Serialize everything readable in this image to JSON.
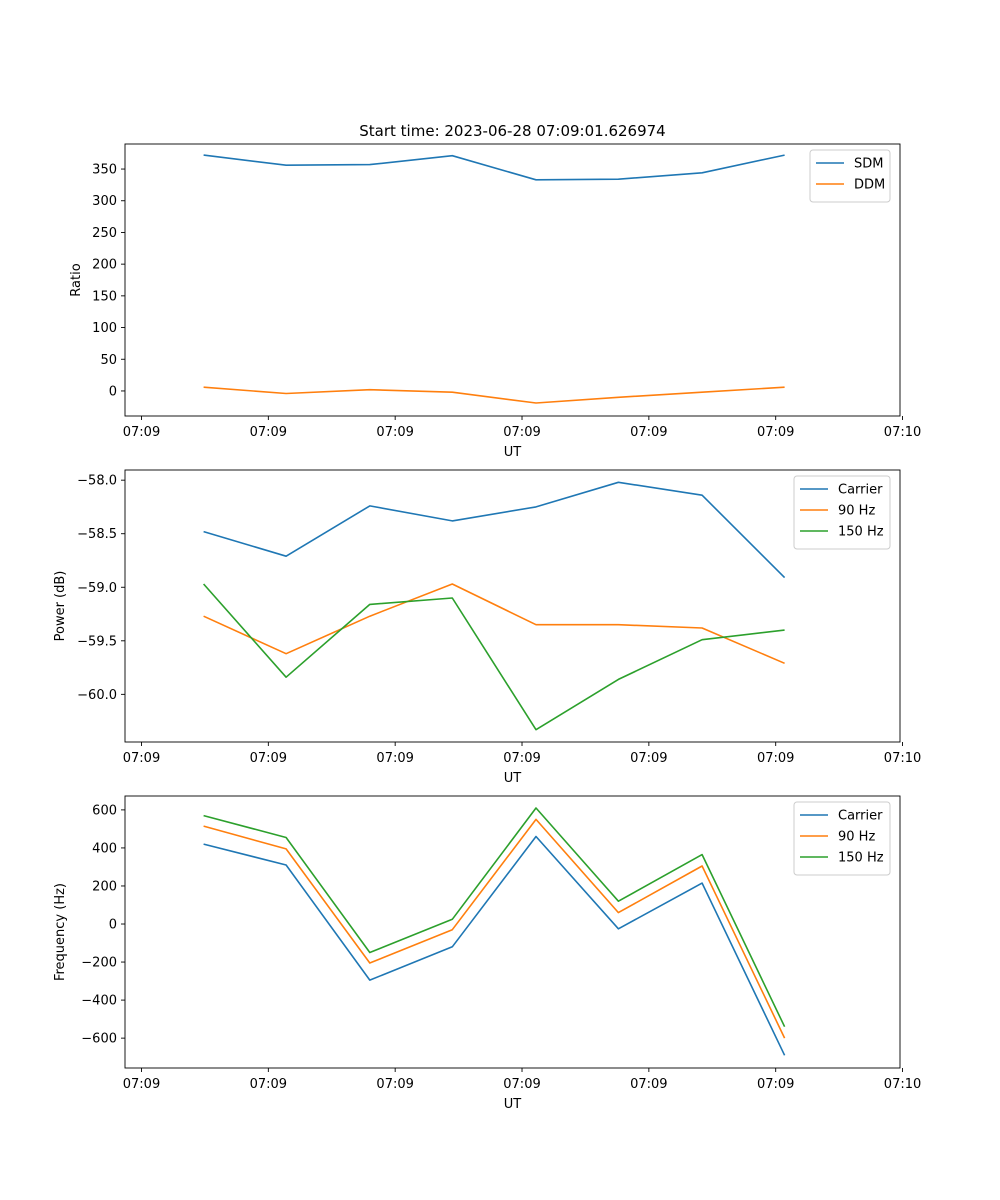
{
  "figure_title": "Start time: 2023-06-28 07:09:01.626974",
  "chart_data": [
    {
      "type": "line",
      "title": "Start time: 2023-06-28 07:09:01.626974",
      "xlabel": "UT",
      "ylabel": "Ratio",
      "x_ticks": [
        "07:09",
        "07:09",
        "07:09",
        "07:09",
        "07:09",
        "07:09",
        "07:10"
      ],
      "x_tick_values": [
        0,
        1,
        2,
        3,
        4,
        5,
        6
      ],
      "xlim": [
        -0.13,
        5.98
      ],
      "x": [
        0.49,
        1.14,
        1.8,
        2.45,
        3.11,
        3.76,
        4.42,
        5.07
      ],
      "ylim": [
        -39.5,
        389.5
      ],
      "y_ticks": [
        0,
        50,
        100,
        150,
        200,
        250,
        300,
        350
      ],
      "legend_position": "upper right",
      "series": [
        {
          "name": "SDM",
          "color": "#1f77b4",
          "values": [
            372,
            356,
            357,
            371,
            333,
            334,
            344,
            372
          ]
        },
        {
          "name": "DDM",
          "color": "#ff7f0e",
          "values": [
            6,
            -4,
            2,
            -2,
            -19,
            -10,
            -2,
            6
          ]
        }
      ]
    },
    {
      "type": "line",
      "xlabel": "UT",
      "ylabel": "Power (dB)",
      "x_ticks": [
        "07:09",
        "07:09",
        "07:09",
        "07:09",
        "07:09",
        "07:09",
        "07:10"
      ],
      "x_tick_values": [
        0,
        1,
        2,
        3,
        4,
        5,
        6
      ],
      "xlim": [
        -0.13,
        5.98
      ],
      "x": [
        0.49,
        1.14,
        1.8,
        2.45,
        3.11,
        3.76,
        4.42,
        5.07
      ],
      "ylim": [
        -60.445,
        -57.905
      ],
      "y_ticks": [
        -60.0,
        -59.5,
        -59.0,
        -58.5,
        -58.0
      ],
      "y_tick_labels": [
        "−60.0",
        "−59.5",
        "−59.0",
        "−58.5",
        "−58.0"
      ],
      "legend_position": "upper right",
      "series": [
        {
          "name": "Carrier",
          "color": "#1f77b4",
          "values": [
            -58.48,
            -58.71,
            -58.24,
            -58.38,
            -58.25,
            -58.02,
            -58.14,
            -58.91
          ]
        },
        {
          "name": "90 Hz",
          "color": "#ff7f0e",
          "values": [
            -59.27,
            -59.62,
            -59.27,
            -58.97,
            -59.35,
            -59.35,
            -59.38,
            -59.71
          ]
        },
        {
          "name": "150 Hz",
          "color": "#2ca02c",
          "values": [
            -58.97,
            -59.84,
            -59.16,
            -59.1,
            -60.33,
            -59.86,
            -59.49,
            -59.4
          ]
        }
      ]
    },
    {
      "type": "line",
      "xlabel": "UT",
      "ylabel": "Frequency (Hz)",
      "x_ticks": [
        "07:09",
        "07:09",
        "07:09",
        "07:09",
        "07:09",
        "07:09",
        "07:10"
      ],
      "x_tick_values": [
        0,
        1,
        2,
        3,
        4,
        5,
        6
      ],
      "xlim": [
        -0.13,
        5.98
      ],
      "x": [
        0.49,
        1.14,
        1.8,
        2.45,
        3.11,
        3.76,
        4.42,
        5.07
      ],
      "ylim": [
        -757,
        673
      ],
      "y_ticks": [
        -600,
        -400,
        -200,
        0,
        200,
        400,
        600
      ],
      "y_tick_labels": [
        "−600",
        "−400",
        "−200",
        "0",
        "200",
        "400",
        "600"
      ],
      "legend_position": "upper right",
      "series": [
        {
          "name": "Carrier",
          "color": "#1f77b4",
          "values": [
            420,
            310,
            -295,
            -120,
            460,
            -25,
            215,
            -690
          ]
        },
        {
          "name": "90 Hz",
          "color": "#ff7f0e",
          "values": [
            515,
            395,
            -205,
            -30,
            550,
            60,
            305,
            -600
          ]
        },
        {
          "name": "150 Hz",
          "color": "#2ca02c",
          "values": [
            570,
            455,
            -150,
            25,
            610,
            120,
            365,
            -540
          ]
        }
      ]
    }
  ]
}
